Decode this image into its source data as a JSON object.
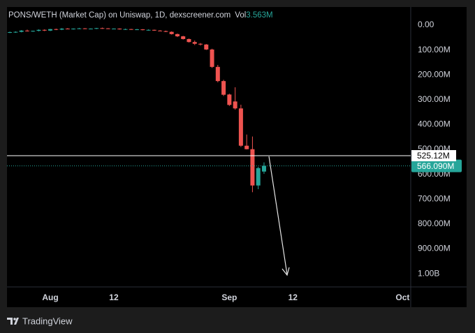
{
  "chart_data": {
    "type": "candlestick",
    "title": "PONS/WETH (Market Cap) on Uniswap, 1D, dexscreener.com",
    "volume_label": "Vol",
    "volume": "3.563M",
    "x": [
      0,
      1,
      2,
      3,
      4,
      5,
      6,
      7,
      8,
      9,
      10,
      11,
      12,
      13,
      14,
      15,
      16,
      17,
      18,
      19,
      20,
      21,
      22,
      23,
      24,
      25,
      26,
      27,
      28,
      29,
      30,
      31,
      32,
      33,
      34,
      35,
      36,
      37,
      38,
      39,
      40,
      41,
      42,
      43,
      44
    ],
    "open": [
      30,
      28,
      27,
      22,
      24,
      23,
      19,
      22,
      16,
      18,
      14,
      16,
      14,
      13,
      15,
      14,
      12,
      13,
      15,
      14,
      17,
      16,
      18,
      17,
      20,
      19,
      22,
      24,
      27,
      36,
      45,
      56,
      68,
      75,
      78,
      98,
      168,
      225,
      279,
      307,
      335,
      485,
      499,
      645,
      589
    ],
    "high": [
      32,
      31,
      29,
      26,
      27,
      25,
      24,
      24,
      20,
      20,
      17,
      18,
      16,
      16,
      17,
      16,
      15,
      16,
      17,
      18,
      19,
      19,
      20,
      21,
      22,
      23,
      25,
      28,
      38,
      48,
      58,
      70,
      80,
      82,
      100,
      172,
      230,
      285,
      325,
      340,
      490,
      500,
      672,
      660,
      598
    ],
    "low": [
      26,
      25,
      20,
      18,
      22,
      17,
      17,
      15,
      14,
      12,
      12,
      13,
      11,
      12,
      13,
      11,
      10,
      12,
      13,
      13,
      14,
      15,
      15,
      16,
      17,
      18,
      20,
      22,
      25,
      34,
      43,
      54,
      62,
      72,
      76,
      95,
      160,
      220,
      276,
      250,
      320,
      440,
      448,
      570,
      552
    ],
    "close": [
      28,
      27,
      22,
      24,
      23,
      19,
      22,
      16,
      18,
      14,
      16,
      14,
      13,
      15,
      14,
      12,
      13,
      15,
      14,
      17,
      16,
      18,
      17,
      20,
      19,
      22,
      24,
      27,
      36,
      45,
      56,
      68,
      75,
      78,
      98,
      168,
      225,
      280,
      321,
      335,
      485,
      499,
      645,
      575,
      566.09
    ],
    "up_color": "#26a69a",
    "down_color": "#ef5350",
    "xlim": [
      -0.5,
      69.4
    ],
    "xticks": [
      {
        "value": 7,
        "label": "Aug"
      },
      {
        "value": 18,
        "label": "12"
      },
      {
        "value": 38,
        "label": "Sep"
      },
      {
        "value": 49,
        "label": "12"
      },
      {
        "value": 68,
        "label": "Oct"
      }
    ],
    "ylim": [
      -73,
      1053
    ],
    "inverted": true,
    "yticks": [
      {
        "value": 0,
        "label": "0.00"
      },
      {
        "value": 100,
        "label": "100.00M"
      },
      {
        "value": 200,
        "label": "200.00M"
      },
      {
        "value": 300,
        "label": "300.00M"
      },
      {
        "value": 400,
        "label": "400.00M"
      },
      {
        "value": 500,
        "label": "500.00M"
      },
      {
        "value": 600,
        "label": "600.00M"
      },
      {
        "value": 700,
        "label": "700.00M"
      },
      {
        "value": 800,
        "label": "800.00M"
      },
      {
        "value": 900,
        "label": "900.00M"
      },
      {
        "value": 1000,
        "label": "1.00B"
      }
    ],
    "price_line": 525.12,
    "price_line_label": "525.12M",
    "last_price": 566.09,
    "last_price_label": "566.090M"
  },
  "footer": {
    "brand": "TradingView"
  }
}
